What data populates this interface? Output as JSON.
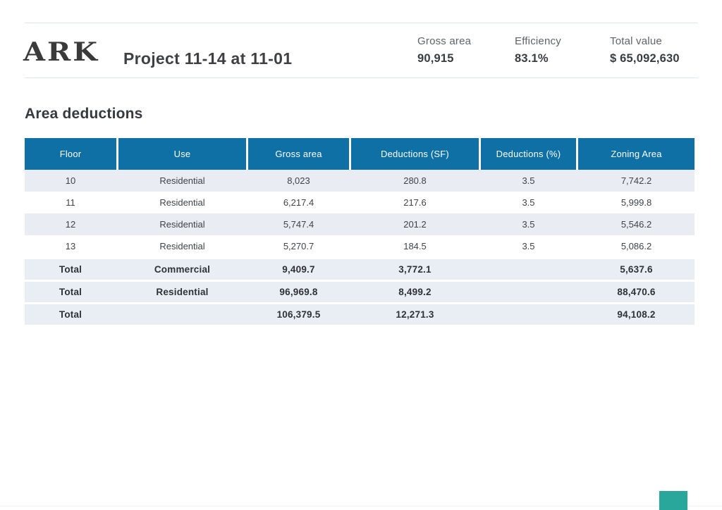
{
  "header": {
    "logo_text": "ARK",
    "title": "Project 11-14 at 11-01",
    "stats": [
      {
        "label": "Gross area",
        "value": "90,915"
      },
      {
        "label": "Efficiency",
        "value": "83.1%"
      },
      {
        "label": "Total value",
        "value": "$ 65,092,630"
      }
    ]
  },
  "section": {
    "title": "Area deductions"
  },
  "table": {
    "columns": [
      "Floor",
      "Use",
      "Gross area",
      "Deductions (SF)",
      "Deductions (%)",
      "Zoning Area"
    ],
    "rows": [
      [
        "10",
        "Residential",
        "8,023",
        "280.8",
        "3.5",
        "7,742.2"
      ],
      [
        "11",
        "Residential",
        "6,217.4",
        "217.6",
        "3.5",
        "5,999.8"
      ],
      [
        "12",
        "Residential",
        "5,747.4",
        "201.2",
        "3.5",
        "5,546.2"
      ],
      [
        "13",
        "Residential",
        "5,270.7",
        "184.5",
        "3.5",
        "5,086.2"
      ]
    ],
    "total_rows": [
      [
        "Total",
        "Commercial",
        "9,409.7",
        "3,772.1",
        "",
        "5,637.6"
      ],
      [
        "Total",
        "Residential",
        "96,969.8",
        "8,499.2",
        "",
        "88,470.6"
      ],
      [
        "Total",
        "",
        "106,379.5",
        "12,271.3",
        "",
        "94,108.2"
      ]
    ]
  },
  "colors": {
    "table_header_blue": "#0f70a6",
    "row_stripe": "#e9edf3",
    "accent_teal": "#2aa79b",
    "text_dark": "#3e4044"
  }
}
